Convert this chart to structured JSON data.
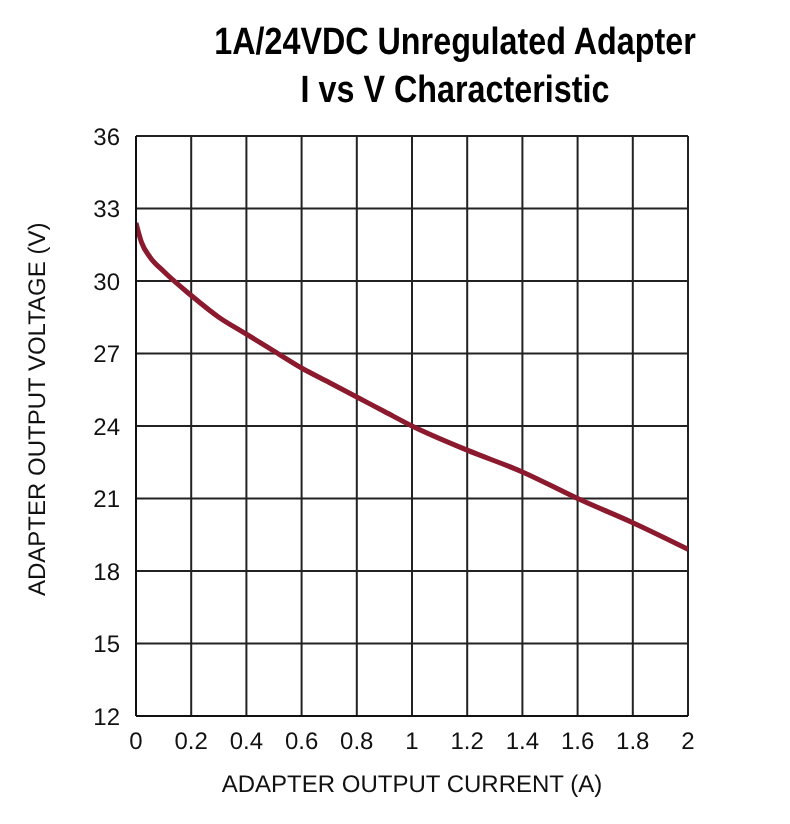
{
  "chart_data": {
    "type": "line",
    "title": "1A/24VDC Unregulated Adapter\nI vs V Characteristic",
    "xlabel": "ADAPTER OUTPUT CURRENT (A)",
    "ylabel": "ADAPTER OUTPUT VOLTAGE (V)",
    "x": [
      0,
      0.02,
      0.05,
      0.1,
      0.2,
      0.3,
      0.4,
      0.5,
      0.6,
      0.7,
      0.8,
      0.9,
      1.0,
      1.2,
      1.4,
      1.6,
      1.8,
      2.0
    ],
    "series": [
      {
        "color": "#8b1a2e",
        "values": [
          32.4,
          31.6,
          31.0,
          30.4,
          29.4,
          28.5,
          27.8,
          27.1,
          26.4,
          25.8,
          25.2,
          24.6,
          24.0,
          23.0,
          22.1,
          21.0,
          20.0,
          18.9
        ]
      }
    ],
    "xlim": [
      0,
      2
    ],
    "xticks": [
      0,
      0.2,
      0.4,
      0.6,
      0.8,
      1,
      1.2,
      1.4,
      1.6,
      1.8,
      2
    ],
    "ylim": [
      12,
      36
    ],
    "yticks": [
      12,
      15,
      18,
      21,
      24,
      27,
      30,
      33,
      36
    ],
    "grid": true,
    "legend": false,
    "marker": "none",
    "line_style": "solid"
  }
}
